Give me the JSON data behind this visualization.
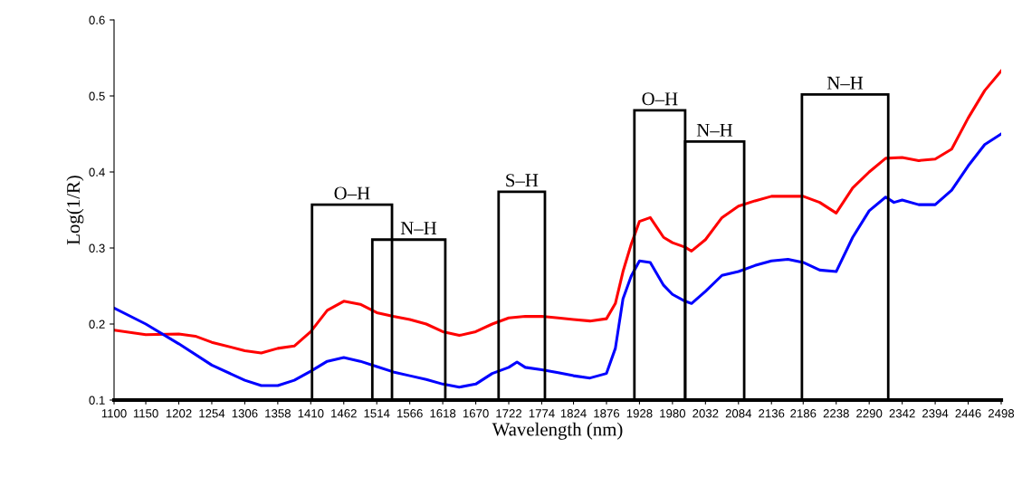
{
  "chart_data": {
    "type": "line",
    "xlabel": "Wavelength (nm)",
    "ylabel": "Log(1/R)",
    "xlim": [
      1100,
      2498
    ],
    "xticks": [
      1100,
      1150,
      1202,
      1254,
      1306,
      1358,
      1410,
      1462,
      1514,
      1566,
      1618,
      1670,
      1722,
      1774,
      1824,
      1876,
      1928,
      1980,
      2032,
      2084,
      2136,
      2186,
      2238,
      2290,
      2342,
      2394,
      2446,
      2498
    ],
    "ylim": [
      0.1,
      0.6
    ],
    "yticks": [
      0.1,
      0.2,
      0.3,
      0.4,
      0.5,
      0.6
    ],
    "grid": false,
    "legend": false,
    "marker": "none",
    "line_style": "solid",
    "series": [
      {
        "color": "#ff0000",
        "x": [
          1100,
          1150,
          1202,
          1228,
          1254,
          1306,
          1332,
          1358,
          1384,
          1410,
          1436,
          1462,
          1488,
          1514,
          1540,
          1566,
          1592,
          1618,
          1644,
          1670,
          1696,
          1722,
          1748,
          1774,
          1800,
          1824,
          1850,
          1876,
          1890,
          1902,
          1915,
          1928,
          1945,
          1966,
          1980,
          2000,
          2010,
          2032,
          2058,
          2084,
          2110,
          2136,
          2162,
          2186,
          2212,
          2238,
          2264,
          2290,
          2316,
          2342,
          2368,
          2394,
          2420,
          2446,
          2472,
          2498
        ],
        "values": [
          0.192,
          0.186,
          0.187,
          0.184,
          0.176,
          0.165,
          0.162,
          0.168,
          0.171,
          0.19,
          0.218,
          0.23,
          0.226,
          0.215,
          0.21,
          0.206,
          0.2,
          0.19,
          0.185,
          0.19,
          0.2,
          0.208,
          0.21,
          0.21,
          0.208,
          0.206,
          0.204,
          0.207,
          0.227,
          0.269,
          0.305,
          0.335,
          0.34,
          0.314,
          0.307,
          0.301,
          0.296,
          0.311,
          0.34,
          0.355,
          0.362,
          0.368,
          0.368,
          0.368,
          0.36,
          0.346,
          0.379,
          0.4,
          0.418,
          0.419,
          0.415,
          0.417,
          0.43,
          0.471,
          0.507,
          0.533
        ]
      },
      {
        "color": "#0000ff",
        "x": [
          1100,
          1150,
          1202,
          1254,
          1306,
          1332,
          1358,
          1384,
          1410,
          1436,
          1462,
          1488,
          1514,
          1540,
          1566,
          1592,
          1618,
          1644,
          1670,
          1696,
          1722,
          1735,
          1748,
          1774,
          1800,
          1824,
          1850,
          1876,
          1890,
          1902,
          1915,
          1928,
          1945,
          1966,
          1980,
          2000,
          2010,
          2032,
          2058,
          2084,
          2110,
          2136,
          2162,
          2186,
          2212,
          2238,
          2264,
          2290,
          2316,
          2329,
          2342,
          2368,
          2394,
          2420,
          2446,
          2472,
          2498
        ],
        "values": [
          0.221,
          0.2,
          0.174,
          0.146,
          0.126,
          0.119,
          0.119,
          0.126,
          0.138,
          0.151,
          0.156,
          0.151,
          0.144,
          0.137,
          0.132,
          0.127,
          0.121,
          0.117,
          0.121,
          0.135,
          0.143,
          0.15,
          0.143,
          0.14,
          0.136,
          0.132,
          0.129,
          0.135,
          0.168,
          0.233,
          0.263,
          0.283,
          0.281,
          0.251,
          0.239,
          0.23,
          0.227,
          0.243,
          0.264,
          0.269,
          0.277,
          0.283,
          0.285,
          0.281,
          0.271,
          0.269,
          0.314,
          0.349,
          0.367,
          0.36,
          0.363,
          0.357,
          0.357,
          0.376,
          0.408,
          0.436,
          0.45
        ]
      },
      {
        "name": "O–H",
        "color": "#000000",
        "x": [
          1412,
          1412,
          1538,
          1538
        ],
        "values": [
          0.1,
          0.357,
          0.357,
          0.1
        ]
      },
      {
        "name": "N–H",
        "color": "#000000",
        "x": [
          1507,
          1507,
          1622,
          1622
        ],
        "values": [
          0.1,
          0.311,
          0.311,
          0.1
        ]
      },
      {
        "name": "S–H",
        "color": "#000000",
        "x": [
          1706,
          1706,
          1779,
          1779
        ],
        "values": [
          0.1,
          0.374,
          0.374,
          0.1
        ]
      },
      {
        "name": "O–H",
        "color": "#000000",
        "x": [
          1920,
          1920,
          2000,
          2000
        ],
        "values": [
          0.1,
          0.481,
          0.481,
          0.1
        ]
      },
      {
        "name": "N–H",
        "color": "#000000",
        "x": [
          2000,
          2000,
          2093,
          2093
        ],
        "values": [
          0.1,
          0.44,
          0.44,
          0.1
        ]
      },
      {
        "name": "N–H",
        "color": "#000000",
        "x": [
          2184,
          2184,
          2320,
          2320
        ],
        "values": [
          0.1,
          0.502,
          0.502,
          0.1
        ]
      }
    ]
  }
}
